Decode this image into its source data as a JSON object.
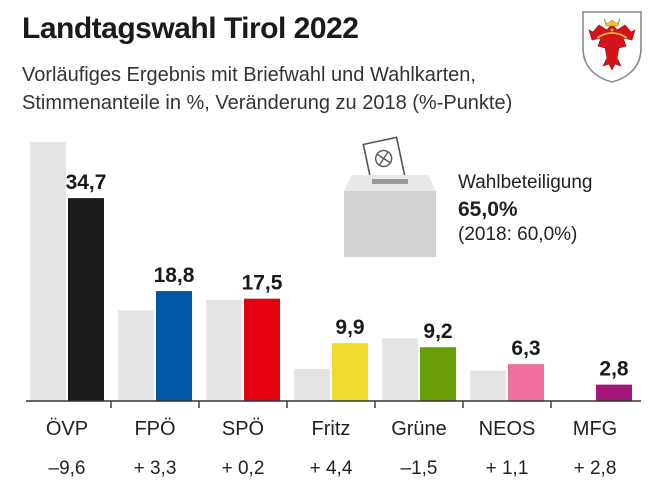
{
  "header": {
    "title": "Landtagswahl Tirol 2022",
    "subtitle_line1": "Vorläufiges Ergebnis mit Briefwahl und Wahlkarten,",
    "subtitle_line2": "Stimmenanteile in %, Veränderung zu 2018 (%-Punkte)"
  },
  "turnout": {
    "label": "Wahlbeteiligung",
    "value": "65,0%",
    "previous": "(2018: 60,0%)"
  },
  "colors": {
    "previous_bar": "#e4e4e4",
    "axis": "#333333"
  },
  "chart_data": {
    "type": "bar",
    "categories": [
      "ÖVP",
      "FPÖ",
      "SPÖ",
      "Fritz",
      "Grüne",
      "NEOS",
      "MFG"
    ],
    "series": [
      {
        "values": [
          44.3,
          15.5,
          17.3,
          5.5,
          10.7,
          5.2,
          0
        ]
      },
      {
        "values": [
          34.7,
          18.8,
          17.5,
          9.9,
          9.2,
          6.3,
          2.8
        ],
        "labels": [
          "34,7",
          "18,8",
          "17,5",
          "9,9",
          "9,2",
          "6,3",
          "2,8"
        ],
        "colors": [
          "#1a1a1a",
          "#0057a8",
          "#e3000f",
          "#f0dc2e",
          "#6aa006",
          "#ef6ea0",
          "#a6157a"
        ]
      }
    ],
    "changes": [
      "–9,6",
      "+ 3,3",
      "+ 0,2",
      "+ 4,4",
      "–1,5",
      "+ 1,1",
      "+ 2,8"
    ],
    "ylim": [
      0,
      44.3
    ]
  }
}
